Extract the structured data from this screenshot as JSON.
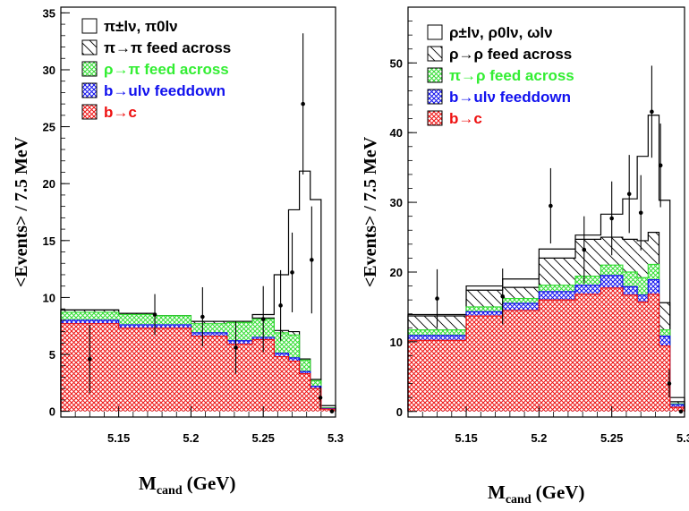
{
  "chart_data": [
    {
      "type": "bar",
      "panel": "left",
      "xlabel": "M",
      "xlabel_sub": "cand",
      "xlabel_unit": "(GeV)",
      "ylabel": "<Events> / 7.5 MeV",
      "xlim": [
        5.11,
        5.3
      ],
      "ylim": [
        -0.5,
        35.5
      ],
      "xticks": [
        5.15,
        5.2,
        5.25,
        5.3
      ],
      "xtick_labels": [
        "5.15",
        "5.2",
        "5.25",
        "5.3"
      ],
      "yticks": [
        0,
        5,
        10,
        15,
        20,
        25,
        30,
        35
      ],
      "ytick_labels": [
        "0",
        "5",
        "10",
        "15",
        "20",
        "25",
        "30",
        "35"
      ],
      "bin_edges": [
        5.11,
        5.15,
        5.175,
        5.2,
        5.225,
        5.2425,
        5.2575,
        5.2675,
        5.275,
        5.2825,
        5.29,
        5.3
      ],
      "stack": {
        "b_to_c": [
          7.7,
          7.3,
          7.3,
          6.6,
          5.9,
          6.3,
          4.8,
          4.4,
          3.3,
          2.0,
          0.2
        ],
        "b_to_ulv": [
          8.0,
          7.6,
          7.6,
          6.9,
          6.2,
          6.5,
          5.1,
          4.7,
          3.5,
          2.2,
          0.25
        ],
        "rho_to_pi": [
          8.7,
          8.5,
          8.4,
          7.7,
          7.8,
          8.1,
          6.9,
          6.7,
          4.5,
          2.7,
          0.3
        ],
        "pi_to_pi": [
          8.9,
          8.6,
          8.4,
          7.9,
          7.9,
          8.2,
          7.1,
          7.0,
          4.6,
          2.8,
          0.3
        ],
        "signal": [
          8.9,
          8.6,
          8.4,
          7.9,
          7.9,
          8.5,
          12.0,
          17.7,
          21.1,
          18.6,
          0.5
        ]
      },
      "points": [
        {
          "x": 5.13,
          "y": 4.6,
          "err": 3.0
        },
        {
          "x": 5.175,
          "y": 8.5,
          "err": 1.8
        },
        {
          "x": 5.208,
          "y": 8.3,
          "err": 2.6
        },
        {
          "x": 5.231,
          "y": 5.6,
          "err": 2.3
        },
        {
          "x": 5.25,
          "y": 8.1,
          "err": 2.9
        },
        {
          "x": 5.262,
          "y": 9.3,
          "err": 3.1
        },
        {
          "x": 5.27,
          "y": 12.2,
          "err": 3.5
        },
        {
          "x": 5.2775,
          "y": 27.0,
          "err": 6.2
        },
        {
          "x": 5.2835,
          "y": 13.3,
          "err": 4.7
        },
        {
          "x": 5.2895,
          "y": 1.2,
          "err": 1.0
        },
        {
          "x": 5.2975,
          "y": 0.0,
          "err": 0.0
        }
      ],
      "legend": [
        {
          "key": "signal",
          "label": "π±lν, π0lν",
          "color": "#000000",
          "fill": "open"
        },
        {
          "key": "pi_to_pi",
          "label": "π→π feed across",
          "color": "#000000",
          "fill": "hatch"
        },
        {
          "key": "rho_to_pi",
          "label": "ρ→π feed across",
          "color": "#33ee33",
          "fill": "cross-green"
        },
        {
          "key": "b_to_ulv",
          "label": "b→ulν feeddown",
          "color": "#1111ee",
          "fill": "cross-blue"
        },
        {
          "key": "b_to_c",
          "label": "b→c",
          "color": "#ee1111",
          "fill": "cross-red"
        }
      ]
    },
    {
      "type": "bar",
      "panel": "right",
      "xlabel": "M",
      "xlabel_sub": "cand",
      "xlabel_unit": "(GeV)",
      "ylabel": "<Events> / 7.5 MeV",
      "xlim": [
        5.11,
        5.3
      ],
      "ylim": [
        -0.8,
        58
      ],
      "xticks": [
        5.15,
        5.2,
        5.25,
        5.3
      ],
      "xtick_labels": [
        "5.15",
        "5.2",
        "5.25",
        "5.3"
      ],
      "yticks": [
        0,
        10,
        20,
        30,
        40,
        50
      ],
      "ytick_labels": [
        "0",
        "10",
        "20",
        "30",
        "40",
        "50"
      ],
      "bin_edges": [
        5.11,
        5.15,
        5.175,
        5.2,
        5.225,
        5.2425,
        5.2575,
        5.2675,
        5.275,
        5.2825,
        5.29,
        5.3
      ],
      "stack": {
        "b_to_c": [
          10.2,
          13.7,
          14.5,
          16.0,
          16.8,
          17.7,
          16.7,
          15.7,
          16.8,
          9.4,
          0.6
        ],
        "b_to_ulv": [
          10.9,
          14.3,
          15.5,
          17.2,
          18.1,
          19.5,
          17.9,
          16.7,
          18.9,
          10.8,
          1.0
        ],
        "pi_to_rho": [
          11.7,
          15.0,
          16.2,
          18.1,
          19.4,
          21.0,
          20.0,
          19.2,
          21.1,
          11.7,
          1.1
        ],
        "rho_to_rho": [
          13.7,
          17.4,
          17.8,
          22.0,
          24.7,
          25.0,
          24.7,
          24.5,
          25.7,
          15.6,
          1.4
        ],
        "signal": [
          13.9,
          18.0,
          19.0,
          23.3,
          25.3,
          28.3,
          30.5,
          36.6,
          42.5,
          30.3,
          2.0
        ]
      },
      "points": [
        {
          "x": 5.13,
          "y": 16.2,
          "err": 4.2
        },
        {
          "x": 5.175,
          "y": 16.5,
          "err": 4.0
        },
        {
          "x": 5.208,
          "y": 29.5,
          "err": 5.4
        },
        {
          "x": 5.231,
          "y": 23.2,
          "err": 4.8
        },
        {
          "x": 5.25,
          "y": 27.7,
          "err": 5.3
        },
        {
          "x": 5.262,
          "y": 31.2,
          "err": 5.6
        },
        {
          "x": 5.27,
          "y": 28.5,
          "err": 5.4
        },
        {
          "x": 5.2775,
          "y": 43.0,
          "err": 6.6
        },
        {
          "x": 5.2835,
          "y": 35.3,
          "err": 6.0
        },
        {
          "x": 5.2895,
          "y": 4.0,
          "err": 2.0
        },
        {
          "x": 5.2975,
          "y": 0.0,
          "err": 0.0
        }
      ],
      "legend": [
        {
          "key": "signal",
          "label": "ρ±lν, ρ0lν, ωlν",
          "color": "#000000",
          "fill": "open"
        },
        {
          "key": "rho_to_rho",
          "label": "ρ→ρ feed across",
          "color": "#000000",
          "fill": "hatch"
        },
        {
          "key": "pi_to_rho",
          "label": "π→ρ feed across",
          "color": "#33ee33",
          "fill": "cross-green"
        },
        {
          "key": "b_to_ulv",
          "label": "b→ulν feeddown",
          "color": "#1111ee",
          "fill": "cross-blue"
        },
        {
          "key": "b_to_c",
          "label": "b→c",
          "color": "#ee1111",
          "fill": "cross-red"
        }
      ]
    }
  ]
}
